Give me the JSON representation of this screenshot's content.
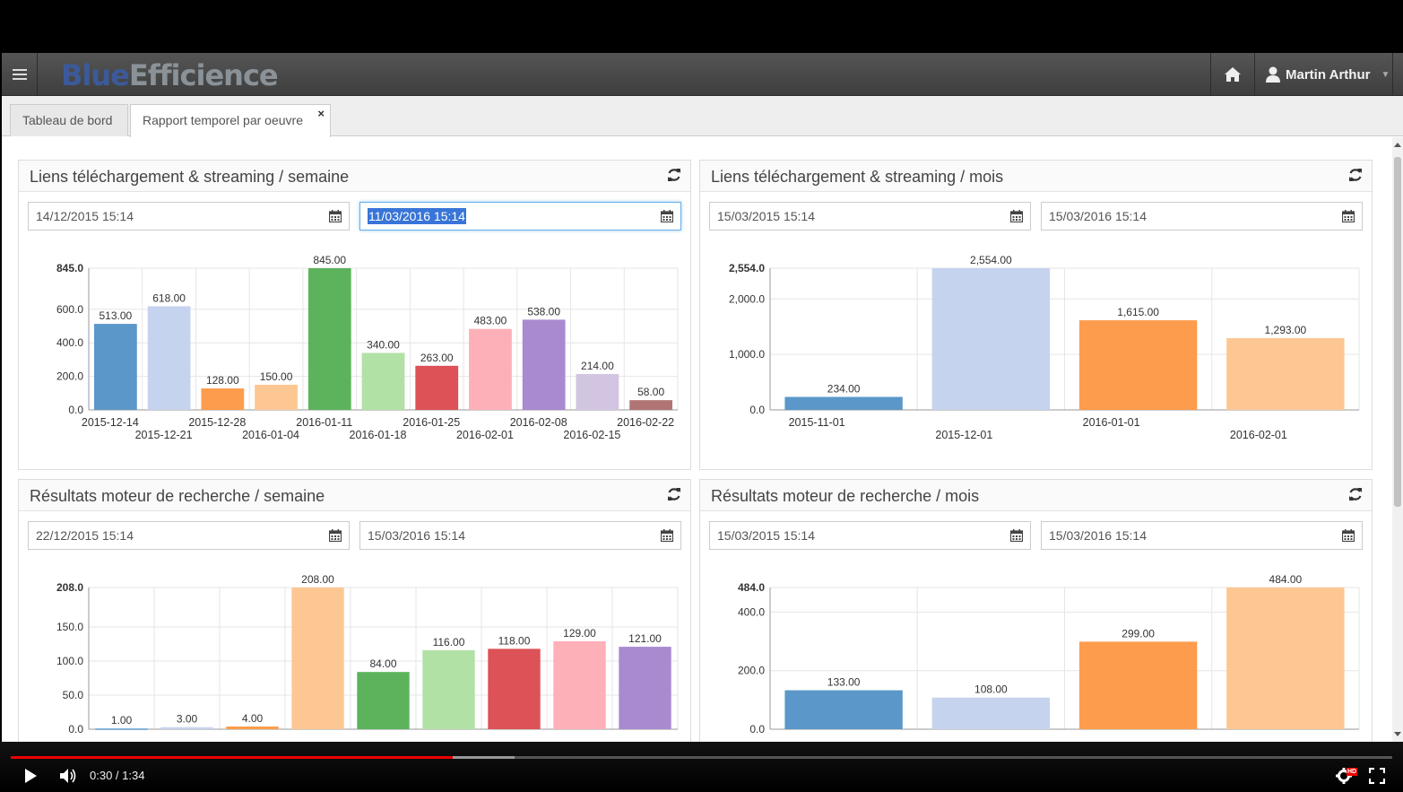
{
  "app": {
    "brand_part1": "Blue",
    "brand_part2": "Efficience",
    "user_name": "Martin Arthur"
  },
  "tabs": [
    {
      "label": "Tableau de bord"
    },
    {
      "label": "Rapport temporel par oeuvre",
      "close": "×"
    }
  ],
  "panels": {
    "p1": {
      "title": "Liens téléchargement & streaming / semaine",
      "start": "14/12/2015 15:14",
      "end": "11/03/2016 15:14"
    },
    "p2": {
      "title": "Liens téléchargement & streaming / mois",
      "start": "15/03/2015 15:14",
      "end": "15/03/2016 15:14"
    },
    "p3": {
      "title": "Résultats moteur de recherche / semaine",
      "start": "22/12/2015 15:14",
      "end": "15/03/2016 15:14"
    },
    "p4": {
      "title": "Résultats moteur de recherche / mois",
      "start": "15/03/2015 15:14",
      "end": "15/03/2016 15:14"
    }
  },
  "chart_data": [
    {
      "type": "bar",
      "title": "Liens téléchargement & streaming / semaine",
      "categories": [
        "2015-12-14",
        "2015-12-21",
        "2015-12-28",
        "2016-01-04",
        "2016-01-11",
        "2016-01-18",
        "2016-01-25",
        "2016-02-01",
        "2016-02-08",
        "2016-02-15",
        "2016-02-22"
      ],
      "values": [
        513,
        618,
        128,
        150,
        845,
        340,
        263,
        483,
        538,
        214,
        58
      ],
      "value_labels": [
        "513.00",
        "618.00",
        "128.00",
        "150.00",
        "845.00",
        "340.00",
        "263.00",
        "483.00",
        "538.00",
        "214.00",
        "58.00"
      ],
      "ylim": [
        0,
        845
      ],
      "yticks": [
        0,
        200,
        400,
        600,
        845
      ],
      "ytick_labels": [
        "0.0",
        "200.0",
        "400.0",
        "600.0",
        "845.0"
      ],
      "colors": [
        "#5b97c9",
        "#c6d3ef",
        "#fd9c4c",
        "#fdc793",
        "#5cb35c",
        "#b2e1a6",
        "#dc5257",
        "#fdb0b8",
        "#a98ad0",
        "#d2c5e1",
        "#b17475"
      ]
    },
    {
      "type": "bar",
      "title": "Liens téléchargement & streaming / mois",
      "categories": [
        "2015-11-01",
        "2015-12-01",
        "2016-01-01",
        "2016-02-01"
      ],
      "values": [
        234,
        2554,
        1615,
        1293
      ],
      "value_labels": [
        "234.00",
        "2,554.00",
        "1,615.00",
        "1,293.00"
      ],
      "ylim": [
        0,
        2554
      ],
      "yticks": [
        0,
        1000,
        2000,
        2554
      ],
      "ytick_labels": [
        "0.0",
        "1,000.0",
        "2,000.0",
        "2,554.0"
      ],
      "colors": [
        "#5b97c9",
        "#c6d3ef",
        "#fd9c4c",
        "#fdc793"
      ]
    },
    {
      "type": "bar",
      "title": "Résultats moteur de recherche / semaine",
      "categories": [
        "",
        "",
        "",
        "",
        "",
        "",
        "",
        "",
        ""
      ],
      "values": [
        1,
        3,
        4,
        208,
        84,
        116,
        118,
        129,
        121
      ],
      "value_labels": [
        "1.00",
        "3.00",
        "4.00",
        "208.00",
        "84.00",
        "116.00",
        "118.00",
        "129.00",
        "121.00"
      ],
      "ylim": [
        0,
        208
      ],
      "yticks": [
        0,
        50,
        100,
        150,
        208
      ],
      "ytick_labels": [
        "0.0",
        "50.0",
        "100.0",
        "150.0",
        "208.0"
      ],
      "colors": [
        "#5b97c9",
        "#c6d3ef",
        "#fd9c4c",
        "#fdc793",
        "#5cb35c",
        "#b2e1a6",
        "#dc5257",
        "#fdb0b8",
        "#a98ad0"
      ]
    },
    {
      "type": "bar",
      "title": "Résultats moteur de recherche / mois",
      "categories": [
        "",
        "",
        "",
        ""
      ],
      "values": [
        133,
        108,
        299,
        484
      ],
      "value_labels": [
        "133.00",
        "108.00",
        "299.00",
        "484.00"
      ],
      "ylim": [
        0,
        484
      ],
      "yticks": [
        0,
        200,
        400,
        484
      ],
      "ytick_labels": [
        "0.0",
        "200.0",
        "400.0",
        "484.0"
      ],
      "colors": [
        "#5b97c9",
        "#c6d3ef",
        "#fd9c4c",
        "#fdc793"
      ]
    }
  ],
  "video": {
    "time": "0:30 / 1:34",
    "played_fraction": 0.32,
    "loaded_fraction": 0.365,
    "hd_badge": "HD"
  }
}
